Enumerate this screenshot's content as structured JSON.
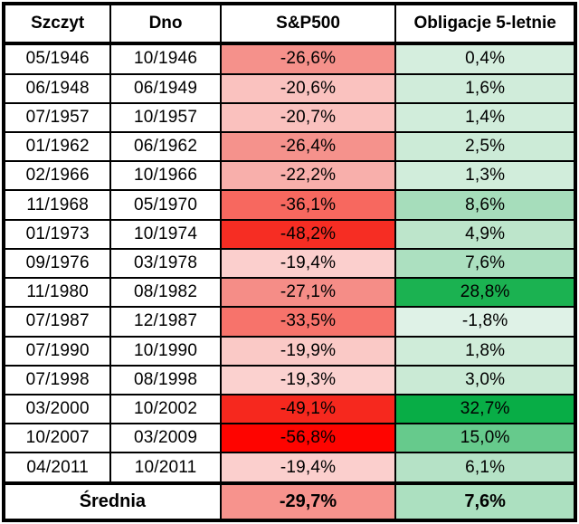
{
  "table": {
    "headers": [
      "Szczyt",
      "Dno",
      "S&P500",
      "Obligacje 5-letnie"
    ],
    "rows": [
      {
        "peak": "05/1946",
        "trough": "10/1946",
        "sp500": "-26,6%",
        "sp500_color": "#F5918B",
        "bonds": "0,4%",
        "bonds_color": "#D5EEDE"
      },
      {
        "peak": "06/1948",
        "trough": "06/1949",
        "sp500": "-20,6%",
        "sp500_color": "#FAC2BF",
        "bonds": "1,6%",
        "bonds_color": "#D0ECDA"
      },
      {
        "peak": "07/1957",
        "trough": "10/1957",
        "sp500": "-20,7%",
        "sp500_color": "#FAC1BE",
        "bonds": "1,4%",
        "bonds_color": "#D1EDDB"
      },
      {
        "peak": "01/1962",
        "trough": "06/1962",
        "sp500": "-26,4%",
        "sp500_color": "#F5928C",
        "bonds": "2,5%",
        "bonds_color": "#CCEBD7"
      },
      {
        "peak": "02/1966",
        "trough": "10/1966",
        "sp500": "-22,2%",
        "sp500_color": "#F8AFAB",
        "bonds": "1,3%",
        "bonds_color": "#D1EDDB"
      },
      {
        "peak": "11/1968",
        "trough": "05/1970",
        "sp500": "-36,1%",
        "sp500_color": "#F7685F",
        "bonds": "8,6%",
        "bonds_color": "#A6DDBB"
      },
      {
        "peak": "01/1973",
        "trough": "10/1974",
        "sp500": "-48,2%",
        "sp500_color": "#F62D23",
        "bonds": "4,9%",
        "bonds_color": "#BDE5CB"
      },
      {
        "peak": "09/1976",
        "trough": "03/1978",
        "sp500": "-19,4%",
        "sp500_color": "#FBCFCD",
        "bonds": "7,6%",
        "bonds_color": "#ACE0C0"
      },
      {
        "peak": "11/1980",
        "trough": "08/1982",
        "sp500": "-27,1%",
        "sp500_color": "#F58D87",
        "bonds": "28,8%",
        "bonds_color": "#1BB251"
      },
      {
        "peak": "07/1987",
        "trough": "12/1987",
        "sp500": "-33,5%",
        "sp500_color": "#F7736B",
        "bonds": "-1,8%",
        "bonds_color": "#DFF2E7"
      },
      {
        "peak": "07/1990",
        "trough": "10/1990",
        "sp500": "-19,9%",
        "sp500_color": "#FAC9C6",
        "bonds": "1,8%",
        "bonds_color": "#CFECD9"
      },
      {
        "peak": "07/1998",
        "trough": "08/1998",
        "sp500": "-19,3%",
        "sp500_color": "#FBD1CF",
        "bonds": "3,0%",
        "bonds_color": "#CAEAD5"
      },
      {
        "peak": "03/2000",
        "trough": "10/2002",
        "sp500": "-49,1%",
        "sp500_color": "#F6281E",
        "bonds": "32,7%",
        "bonds_color": "#08AD46"
      },
      {
        "peak": "10/2007",
        "trough": "03/2009",
        "sp500": "-56,8%",
        "sp500_color": "#FE0400",
        "bonds": "15,0%",
        "bonds_color": "#66CA8C"
      },
      {
        "peak": "04/2011",
        "trough": "10/2011",
        "sp500": "-19,4%",
        "sp500_color": "#FBCFCD",
        "bonds": "6,1%",
        "bonds_color": "#B5E2C6"
      }
    ],
    "footer": {
      "label": "Średnia",
      "sp500": "-29,7%",
      "sp500_color": "#F7938D",
      "bonds": "7,6%",
      "bonds_color": "#ACE0C0"
    }
  },
  "colors": {
    "grid_border": "#000000",
    "background": "#FFFFFF",
    "red_max": "#FE0400",
    "red_min": "#FBD1CF",
    "green_max": "#08AD46",
    "green_min": "#DFF2E7"
  },
  "chart_data": {
    "type": "table",
    "title": "",
    "columns": [
      "Szczyt",
      "Dno",
      "S&P500",
      "Obligacje 5-letnie"
    ],
    "rows": [
      [
        "05/1946",
        "10/1946",
        -26.6,
        0.4
      ],
      [
        "06/1948",
        "06/1949",
        -20.6,
        1.6
      ],
      [
        "07/1957",
        "10/1957",
        -20.7,
        1.4
      ],
      [
        "01/1962",
        "06/1962",
        -26.4,
        2.5
      ],
      [
        "02/1966",
        "10/1966",
        -22.2,
        1.3
      ],
      [
        "11/1968",
        "05/1970",
        -36.1,
        8.6
      ],
      [
        "01/1973",
        "10/1974",
        -48.2,
        4.9
      ],
      [
        "09/1976",
        "03/1978",
        -19.4,
        7.6
      ],
      [
        "11/1980",
        "08/1982",
        -27.1,
        28.8
      ],
      [
        "07/1987",
        "12/1987",
        -33.5,
        -1.8
      ],
      [
        "07/1990",
        "10/1990",
        -19.9,
        1.8
      ],
      [
        "07/1998",
        "08/1998",
        -19.3,
        3.0
      ],
      [
        "03/2000",
        "10/2002",
        -49.1,
        32.7
      ],
      [
        "10/2007",
        "03/2009",
        -56.8,
        15.0
      ],
      [
        "04/2011",
        "10/2011",
        -19.4,
        6.1
      ]
    ],
    "footer_row": [
      "Średnia",
      -29.7,
      7.6
    ],
    "notes": "Heatmap-style conditional formatting: S&P500 drawdowns shaded light pink to pure red by magnitude; 5-year bond returns shaded pale green to saturated green by magnitude."
  }
}
